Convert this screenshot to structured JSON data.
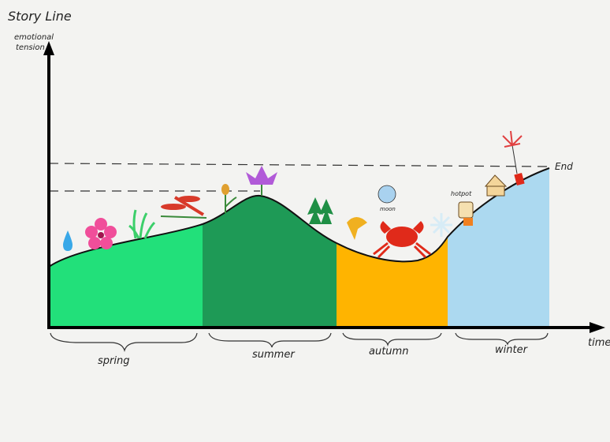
{
  "title": "Story Line",
  "y_axis_label": [
    "emotional",
    "tension"
  ],
  "x_axis_label": "time",
  "end_label": "End",
  "seasons": [
    "spring",
    "summer",
    "autumn",
    "winter"
  ],
  "icon_labels": {
    "moon": "moon",
    "hotpot": "hotpot"
  }
}
